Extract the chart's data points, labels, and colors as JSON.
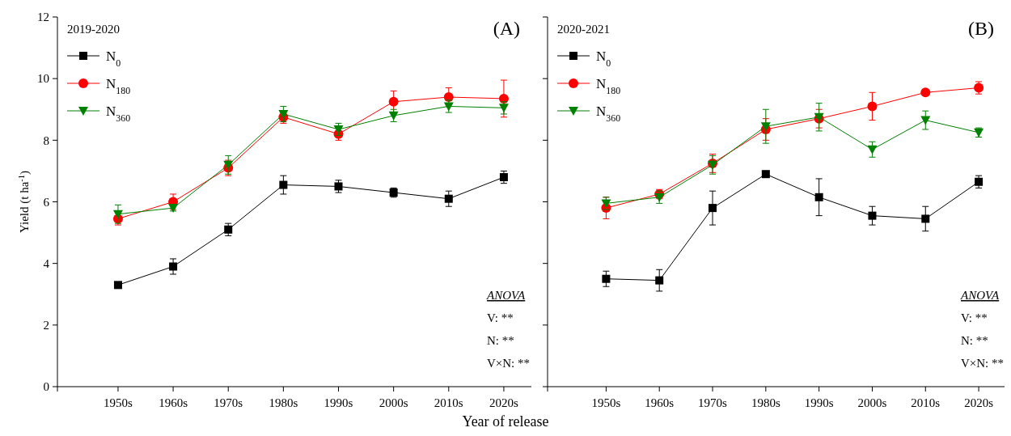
{
  "chart_data": [
    {
      "type": "line",
      "title": "(A)",
      "legend_title": "2019-2020",
      "xlabel": "Year of release",
      "ylabel": "Yield (t ha$^{-1}$)",
      "categories": [
        "1950s",
        "1960s",
        "1970s",
        "1980s",
        "1990s",
        "2000s",
        "2010s",
        "2020s"
      ],
      "ylim": [
        0,
        12
      ],
      "yticks": [
        0,
        2,
        4,
        6,
        8,
        10,
        12
      ],
      "legend": "top left",
      "annotations": [
        "ANOVA",
        "V: **",
        "N: **",
        "V×N: **"
      ],
      "series": [
        {
          "name": "N$_{0}$",
          "color": "#000000",
          "marker": "square",
          "values": [
            3.3,
            3.9,
            5.1,
            6.55,
            6.5,
            6.3,
            6.1,
            6.8
          ],
          "errors": [
            0.05,
            0.25,
            0.2,
            0.3,
            0.2,
            0.15,
            0.25,
            0.2
          ]
        },
        {
          "name": "N$_{180}$",
          "color": "#ff0000",
          "marker": "circle",
          "values": [
            5.45,
            6.0,
            7.1,
            8.75,
            8.2,
            9.25,
            9.4,
            9.35
          ],
          "errors": [
            0.2,
            0.25,
            0.25,
            0.2,
            0.2,
            0.35,
            0.3,
            0.6
          ]
        },
        {
          "name": "N$_{360}$",
          "color": "#008000",
          "marker": "triangle",
          "values": [
            5.6,
            5.8,
            7.2,
            8.85,
            8.35,
            8.8,
            9.1,
            9.05
          ],
          "errors": [
            0.3,
            0.1,
            0.3,
            0.25,
            0.2,
            0.2,
            0.2,
            0.2
          ]
        }
      ]
    },
    {
      "type": "line",
      "title": "(B)",
      "legend_title": "2020-2021",
      "categories": [
        "1950s",
        "1960s",
        "1970s",
        "1980s",
        "1990s",
        "2000s",
        "2010s",
        "2020s"
      ],
      "ylim": [
        0,
        12
      ],
      "yticks": [
        0,
        2,
        4,
        6,
        8,
        10,
        12
      ],
      "tick_labels": "x",
      "legend": "top left",
      "annotations": [
        "ANOVA",
        "V: **",
        "N: **",
        "V×N: **"
      ],
      "series": [
        {
          "name": "N$_{0}$",
          "color": "#000000",
          "marker": "square",
          "values": [
            3.5,
            3.45,
            5.8,
            6.9,
            6.15,
            5.55,
            5.45,
            6.65
          ],
          "errors": [
            0.25,
            0.35,
            0.55,
            0.05,
            0.6,
            0.3,
            0.4,
            0.2
          ]
        },
        {
          "name": "N$_{180}$",
          "color": "#ff0000",
          "marker": "circle",
          "values": [
            5.8,
            6.25,
            7.25,
            8.35,
            8.7,
            9.1,
            9.55,
            9.7
          ],
          "errors": [
            0.35,
            0.15,
            0.3,
            0.35,
            0.3,
            0.45,
            0.05,
            0.2
          ]
        },
        {
          "name": "N$_{360}$",
          "color": "#008000",
          "marker": "triangle",
          "values": [
            5.95,
            6.15,
            7.2,
            8.45,
            8.75,
            7.7,
            8.65,
            8.25
          ],
          "errors": [
            0.2,
            0.2,
            0.3,
            0.55,
            0.45,
            0.25,
            0.3,
            0.15
          ]
        }
      ]
    }
  ]
}
